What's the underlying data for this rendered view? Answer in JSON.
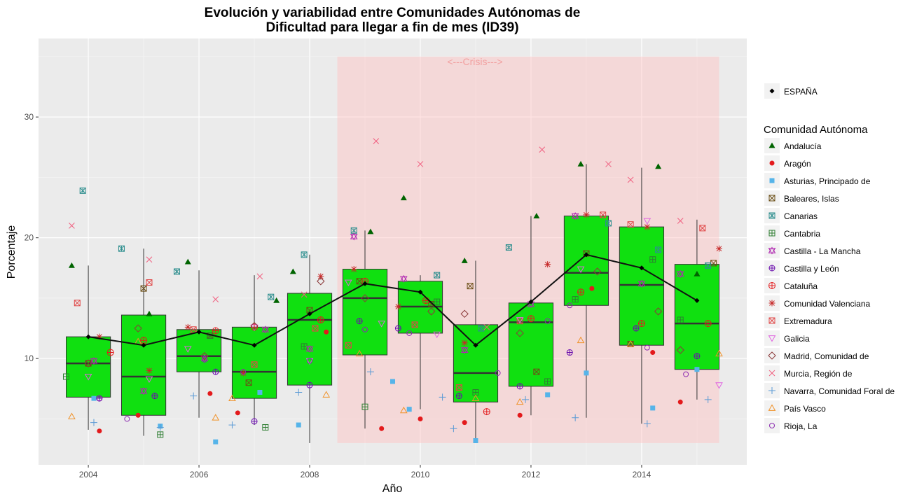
{
  "chart_data": {
    "type": "box",
    "title_line1": "Evolución y variabilidad entre Comunidades Autónomas de",
    "title_line2": "Dificultad para llegar a fin de mes (ID39)",
    "xlabel": "Año",
    "ylabel": "Porcentaje",
    "xlim": [
      2003.1,
      2015.9
    ],
    "ylim": [
      1.2,
      36.5
    ],
    "x_ticks": [
      2004,
      2006,
      2008,
      2010,
      2012,
      2014
    ],
    "y_ticks": [
      10,
      20,
      30
    ],
    "grid": true,
    "annotation": {
      "text": "<---Crisis--->",
      "x_range": [
        2008.5,
        2015.4
      ],
      "y_range": [
        3,
        35
      ],
      "label_x": 2010.0,
      "label_y": 34.6,
      "color": "#f4b6b6"
    },
    "boxes": [
      {
        "year": 2004,
        "q1": 6.8,
        "median": 9.6,
        "q3": 11.8,
        "whisker_low": 4.1,
        "whisker_high": 17.7
      },
      {
        "year": 2005,
        "q1": 5.3,
        "median": 8.5,
        "q3": 13.6,
        "whisker_low": 3.6,
        "whisker_high": 19.1
      },
      {
        "year": 2006,
        "q1": 8.9,
        "median": 10.2,
        "q3": 12.4,
        "whisker_low": 5.1,
        "whisker_high": 17.3
      },
      {
        "year": 2007,
        "q1": 6.7,
        "median": 8.9,
        "q3": 12.6,
        "whisker_low": 4.5,
        "whisker_high": 16.9
      },
      {
        "year": 2008,
        "q1": 7.8,
        "median": 13.2,
        "q3": 15.4,
        "whisker_low": 3.0,
        "whisker_high": 18.6
      },
      {
        "year": 2009,
        "q1": 10.3,
        "median": 15.0,
        "q3": 17.4,
        "whisker_low": 4.2,
        "whisker_high": 20.6
      },
      {
        "year": 2010,
        "q1": 12.1,
        "median": 14.3,
        "q3": 16.4,
        "whisker_low": 5.8,
        "whisker_high": 16.9
      },
      {
        "year": 2011,
        "q1": 6.4,
        "median": 8.8,
        "q3": 12.8,
        "whisker_low": 3.2,
        "whisker_high": 18.1
      },
      {
        "year": 2012,
        "q1": 7.7,
        "median": 13.0,
        "q3": 14.6,
        "whisker_low": 5.3,
        "whisker_high": 21.8
      },
      {
        "year": 2013,
        "q1": 14.4,
        "median": 17.1,
        "q3": 21.8,
        "whisker_low": 5.1,
        "whisker_high": 26.1
      },
      {
        "year": 2014,
        "q1": 11.1,
        "median": 16.1,
        "q3": 20.9,
        "whisker_low": 4.6,
        "whisker_high": 25.8
      },
      {
        "year": 2015,
        "q1": 9.1,
        "median": 12.9,
        "q3": 17.8,
        "whisker_low": 6.6,
        "whisker_high": 21.5
      }
    ],
    "box_fill": "#10e010",
    "espana": {
      "name": "ESPAÑA",
      "x": [
        2004,
        2005,
        2006,
        2007,
        2008,
        2009,
        2010,
        2011,
        2012,
        2013,
        2014,
        2015
      ],
      "y": [
        11.8,
        11.1,
        12.2,
        11.1,
        13.7,
        16.2,
        15.5,
        11.1,
        14.7,
        18.6,
        17.5,
        14.8
      ]
    },
    "legend_title": "Comunidad Autónoma",
    "series": [
      {
        "name": "Andalucía",
        "shape": "triangle-filled",
        "color": "#006400",
        "x": [
          2003.7,
          2005.1,
          2005.8,
          2007.4,
          2007.7,
          2009.1,
          2009.7,
          2010.8,
          2012.1,
          2012.9,
          2014.3,
          2015.0
        ],
        "y": [
          17.7,
          13.7,
          18.0,
          14.8,
          17.2,
          20.5,
          23.3,
          18.1,
          21.8,
          26.1,
          25.9,
          17.0
        ]
      },
      {
        "name": "Aragón",
        "shape": "circle-filled",
        "color": "#e31a1c",
        "x": [
          2004.2,
          2004.9,
          2006.2,
          2006.7,
          2008.3,
          2009.3,
          2010.0,
          2010.8,
          2011.8,
          2013.1,
          2014.2,
          2014.7
        ],
        "y": [
          4.0,
          5.3,
          7.1,
          5.5,
          12.2,
          4.2,
          5.0,
          4.7,
          5.3,
          15.8,
          10.5,
          6.4
        ]
      },
      {
        "name": "Asturias, Principado de",
        "shape": "square-filled",
        "color": "#56b4e9",
        "x": [
          2004.1,
          2005.3,
          2006.3,
          2007.1,
          2007.8,
          2009.5,
          2009.8,
          2011.0,
          2012.3,
          2013.0,
          2014.2,
          2015.0
        ],
        "y": [
          6.7,
          4.4,
          3.1,
          7.2,
          4.5,
          8.1,
          5.8,
          3.2,
          7.0,
          8.8,
          5.9,
          9.1
        ]
      },
      {
        "name": "Baleares, Islas",
        "shape": "square-x",
        "color": "#6b4e16",
        "x": [
          2004.0,
          2005.0,
          2006.2,
          2006.9,
          2008.0,
          2008.9,
          2010.2,
          2010.9,
          2012.1,
          2013.0,
          2013.8,
          2015.3
        ],
        "y": [
          9.6,
          15.8,
          11.9,
          8.0,
          14.0,
          16.4,
          14.5,
          16.0,
          8.9,
          18.7,
          11.2,
          17.9
        ]
      },
      {
        "name": "Canarias",
        "shape": "square-star",
        "color": "#2f8f8f",
        "x": [
          2003.9,
          2004.6,
          2005.6,
          2007.3,
          2007.9,
          2008.8,
          2010.3,
          2011.1,
          2011.6,
          2013.4,
          2014.3,
          2015.2
        ],
        "y": [
          23.9,
          19.1,
          17.2,
          15.1,
          18.6,
          20.6,
          16.9,
          12.5,
          19.2,
          21.2,
          19.0,
          17.7
        ]
      },
      {
        "name": "Cantabria",
        "shape": "square-plus",
        "color": "#2e7d32",
        "x": [
          2003.6,
          2005.3,
          2006.2,
          2007.2,
          2007.9,
          2009.0,
          2010.3,
          2011.0,
          2012.3,
          2012.8,
          2014.2,
          2014.7
        ],
        "y": [
          8.5,
          3.7,
          11.9,
          4.3,
          11.0,
          6.0,
          14.7,
          7.2,
          8.1,
          14.9,
          18.2,
          13.2
        ]
      },
      {
        "name": "Castilla - La Mancha",
        "shape": "hexagram",
        "color": "#b027b0",
        "x": [
          2004.1,
          2005.0,
          2006.1,
          2007.2,
          2008.0,
          2008.8,
          2009.7,
          2010.8,
          2012.0,
          2012.8,
          2014.0,
          2014.7
        ],
        "y": [
          9.8,
          7.3,
          10.0,
          12.4,
          10.8,
          20.1,
          16.6,
          10.7,
          14.5,
          21.8,
          16.2,
          17.0
        ]
      },
      {
        "name": "Castilla y León",
        "shape": "circle-plus",
        "color": "#6a0dad",
        "x": [
          2004.2,
          2005.2,
          2006.3,
          2007.0,
          2008.0,
          2008.9,
          2009.6,
          2010.7,
          2011.8,
          2012.7,
          2013.9,
          2015.0
        ],
        "y": [
          6.7,
          6.9,
          8.9,
          4.8,
          7.8,
          13.1,
          12.5,
          6.9,
          7.7,
          10.5,
          12.5,
          10.2
        ]
      },
      {
        "name": "Cataluña",
        "shape": "circle-cross",
        "color": "#e31a1c",
        "x": [
          2004.4,
          2005.0,
          2006.3,
          2007.0,
          2008.2,
          2009.0,
          2010.1,
          2011.2,
          2012.0,
          2012.9,
          2014.0,
          2015.2
        ],
        "y": [
          10.5,
          11.5,
          12.3,
          12.6,
          13.2,
          16.4,
          14.8,
          5.6,
          13.3,
          15.5,
          12.9,
          12.9
        ]
      },
      {
        "name": "Comunidad Valenciana",
        "shape": "asterisk",
        "color": "#c62828",
        "x": [
          2004.2,
          2005.1,
          2005.8,
          2006.8,
          2008.2,
          2008.8,
          2009.6,
          2010.8,
          2012.3,
          2013.0,
          2014.1,
          2015.4
        ],
        "y": [
          11.8,
          9.0,
          12.6,
          8.8,
          16.8,
          17.4,
          14.3,
          11.3,
          17.8,
          21.9,
          20.9,
          19.1
        ]
      },
      {
        "name": "Extremadura",
        "shape": "square-x",
        "color": "#e04848",
        "x": [
          2003.8,
          2005.1,
          2005.9,
          2007.0,
          2008.1,
          2008.7,
          2009.9,
          2010.7,
          2011.8,
          2013.3,
          2013.8,
          2015.1
        ],
        "y": [
          14.6,
          16.3,
          12.4,
          9.5,
          12.5,
          11.1,
          12.8,
          7.6,
          13.1,
          21.9,
          21.1,
          20.8
        ]
      },
      {
        "name": "Galicia",
        "shape": "triangle-down",
        "color": "#e066e0",
        "x": [
          2004.0,
          2005.1,
          2005.8,
          2007.0,
          2008.0,
          2008.7,
          2009.3,
          2010.3,
          2011.8,
          2012.9,
          2014.1,
          2015.4
        ],
        "y": [
          8.5,
          8.3,
          10.8,
          12.6,
          9.8,
          16.3,
          12.9,
          12.0,
          13.2,
          17.4,
          21.4,
          7.8
        ]
      },
      {
        "name": "Madrid, Comunidad de",
        "shape": "diamond",
        "color": "#8b3a3a",
        "x": [
          2004.0,
          2004.9,
          2006.1,
          2007.0,
          2008.2,
          2009.0,
          2010.2,
          2010.8,
          2011.8,
          2013.2,
          2014.3,
          2014.7
        ],
        "y": [
          9.6,
          12.5,
          10.2,
          12.7,
          16.4,
          15.0,
          13.9,
          13.7,
          12.1,
          17.2,
          13.9,
          10.7
        ]
      },
      {
        "name": "Murcia, Región de",
        "shape": "cross",
        "color": "#f06080",
        "x": [
          2003.7,
          2005.1,
          2006.3,
          2007.1,
          2007.9,
          2009.2,
          2010.0,
          2011.2,
          2012.2,
          2013.4,
          2013.8,
          2014.7
        ],
        "y": [
          21.0,
          18.2,
          14.9,
          16.8,
          15.3,
          28.0,
          26.1,
          12.6,
          27.3,
          26.1,
          24.8,
          21.4
        ]
      },
      {
        "name": "Navarra, Comunidad Foral de",
        "shape": "plus",
        "color": "#5b9bd5",
        "x": [
          2004.1,
          2005.3,
          2005.9,
          2006.6,
          2007.8,
          2009.1,
          2010.4,
          2010.6,
          2011.9,
          2012.8,
          2014.1,
          2015.2
        ],
        "y": [
          4.7,
          4.3,
          6.9,
          4.5,
          7.2,
          8.9,
          6.8,
          4.2,
          6.6,
          5.1,
          4.6,
          6.6
        ]
      },
      {
        "name": "País Vasco",
        "shape": "triangle",
        "color": "#f0922a",
        "x": [
          2003.7,
          2004.9,
          2006.3,
          2006.6,
          2008.3,
          2008.9,
          2009.7,
          2011.0,
          2011.8,
          2012.9,
          2013.8,
          2015.4
        ],
        "y": [
          5.2,
          11.4,
          5.1,
          6.7,
          7.0,
          10.4,
          5.7,
          6.7,
          6.4,
          11.5,
          11.2,
          10.4
        ]
      },
      {
        "name": "Rioja, La",
        "shape": "circle",
        "color": "#8b2ab0",
        "x": [
          2004.2,
          2004.7,
          2006.1,
          2006.8,
          2008.0,
          2009.0,
          2009.8,
          2011.4,
          2012.3,
          2012.7,
          2014.1,
          2014.8
        ],
        "y": [
          6.7,
          5.0,
          9.9,
          8.9,
          9.8,
          12.4,
          12.1,
          8.8,
          13.1,
          14.4,
          10.9,
          8.7
        ]
      }
    ]
  }
}
